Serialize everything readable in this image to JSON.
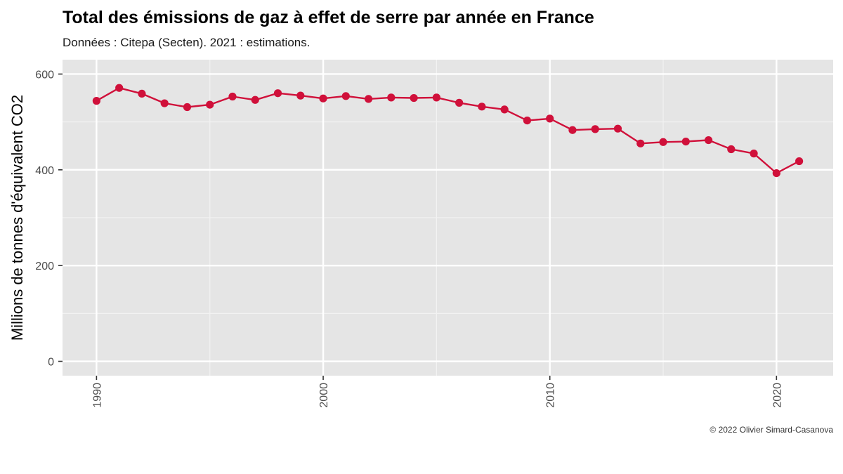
{
  "chart_data": {
    "type": "line",
    "title": "Total des émissions de gaz à effet de serre par année en France",
    "subtitle": "Données : Citepa (Secten). 2021 : estimations.",
    "xlabel": "",
    "ylabel": "Millions de tonnes d'équivalent CO2",
    "caption": "© 2022 Olivier Simard-Casanova",
    "x_ticks": [
      1990,
      2000,
      2010,
      2020
    ],
    "y_ticks": [
      0,
      200,
      400,
      600
    ],
    "xlim": [
      1988.5,
      2022.5
    ],
    "ylim": [
      -30,
      630
    ],
    "grid": true,
    "series": [
      {
        "x": [
          1990,
          1991,
          1992,
          1993,
          1994,
          1995,
          1996,
          1997,
          1998,
          1999,
          2000,
          2001,
          2002,
          2003,
          2004,
          2005,
          2006,
          2007,
          2008,
          2009,
          2010,
          2011,
          2012,
          2013,
          2014,
          2015,
          2016,
          2017,
          2018,
          2019,
          2020,
          2021
        ],
        "values": [
          544,
          571,
          559,
          539,
          531,
          536,
          553,
          546,
          560,
          555,
          549,
          554,
          548,
          551,
          550,
          551,
          540,
          532,
          526,
          503,
          507,
          483,
          485,
          486,
          455,
          458,
          459,
          462,
          443,
          434,
          393,
          418
        ],
        "color": "#d0103a"
      }
    ]
  }
}
